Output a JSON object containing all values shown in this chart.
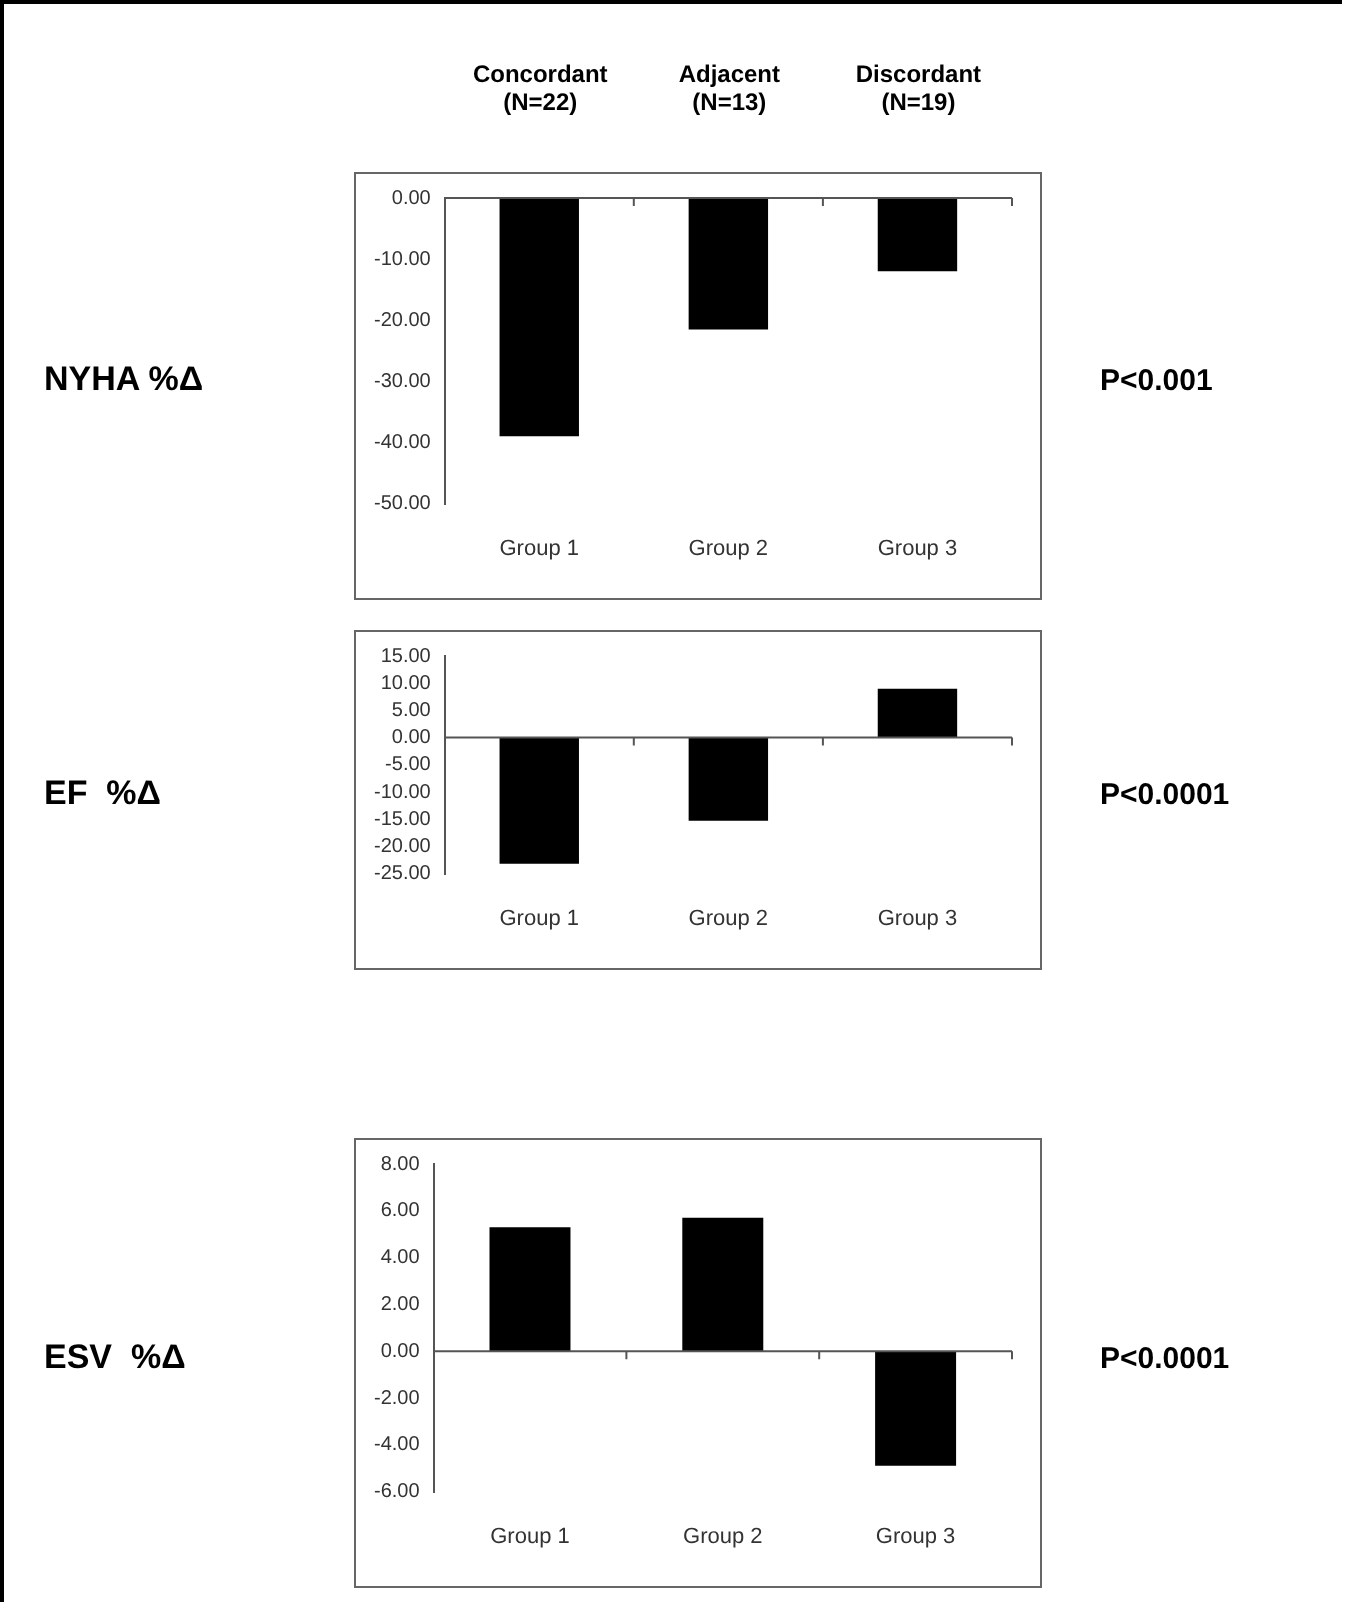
{
  "chart_data": [
    {
      "type": "bar",
      "ylabel": "NYHA %Δ",
      "categories": [
        "Group 1",
        "Group 2",
        "Group 3"
      ],
      "values": [
        -39,
        -21.5,
        -12
      ],
      "color": "#000000",
      "ylim": [
        -50,
        0
      ],
      "yticks": [
        {
          "value": 0,
          "label": "0.00"
        },
        {
          "value": -10,
          "label": "-10.00"
        },
        {
          "value": -20,
          "label": "-20.00"
        },
        {
          "value": -30,
          "label": "-30.00"
        },
        {
          "value": -40,
          "label": "-40.00"
        },
        {
          "value": -50,
          "label": "-50.00"
        }
      ],
      "annotations": [
        "Concordant\n(N=22)",
        "Adjacent\n(N=13)",
        "Discordant\n(N=19)",
        "P<0.001"
      ]
    },
    {
      "type": "bar",
      "ylabel": "EF  %Δ",
      "categories": [
        "Group 1",
        "Group 2",
        "Group 3"
      ],
      "values": [
        -23.2,
        -15.3,
        9
      ],
      "color": "#000000",
      "ylim": [
        -25,
        15
      ],
      "yticks": [
        {
          "value": 15,
          "label": "15.00"
        },
        {
          "value": 10,
          "label": "10.00"
        },
        {
          "value": 5,
          "label": "5.00"
        },
        {
          "value": 0,
          "label": "0.00"
        },
        {
          "value": -5,
          "label": "-5.00"
        },
        {
          "value": -10,
          "label": "-10.00"
        },
        {
          "value": -15,
          "label": "-15.00"
        },
        {
          "value": -20,
          "label": "-20.00"
        },
        {
          "value": -25,
          "label": "-25.00"
        }
      ],
      "annotations": [
        "P<0.0001"
      ]
    },
    {
      "type": "bar",
      "ylabel": "ESV  %Δ",
      "categories": [
        "Group 1",
        "Group 2",
        "Group 3"
      ],
      "values": [
        5.3,
        5.7,
        -4.9
      ],
      "color": "#000000",
      "ylim": [
        -6,
        8
      ],
      "yticks": [
        {
          "value": 8,
          "label": "8.00"
        },
        {
          "value": 6,
          "label": "6.00"
        },
        {
          "value": 4,
          "label": "4.00"
        },
        {
          "value": 2,
          "label": "2.00"
        },
        {
          "value": 0,
          "label": "0.00"
        },
        {
          "value": -2,
          "label": "-2.00"
        },
        {
          "value": -4,
          "label": "-4.00"
        },
        {
          "value": -6,
          "label": "-6.00"
        }
      ],
      "annotations": [
        "P<0.0001"
      ]
    }
  ]
}
